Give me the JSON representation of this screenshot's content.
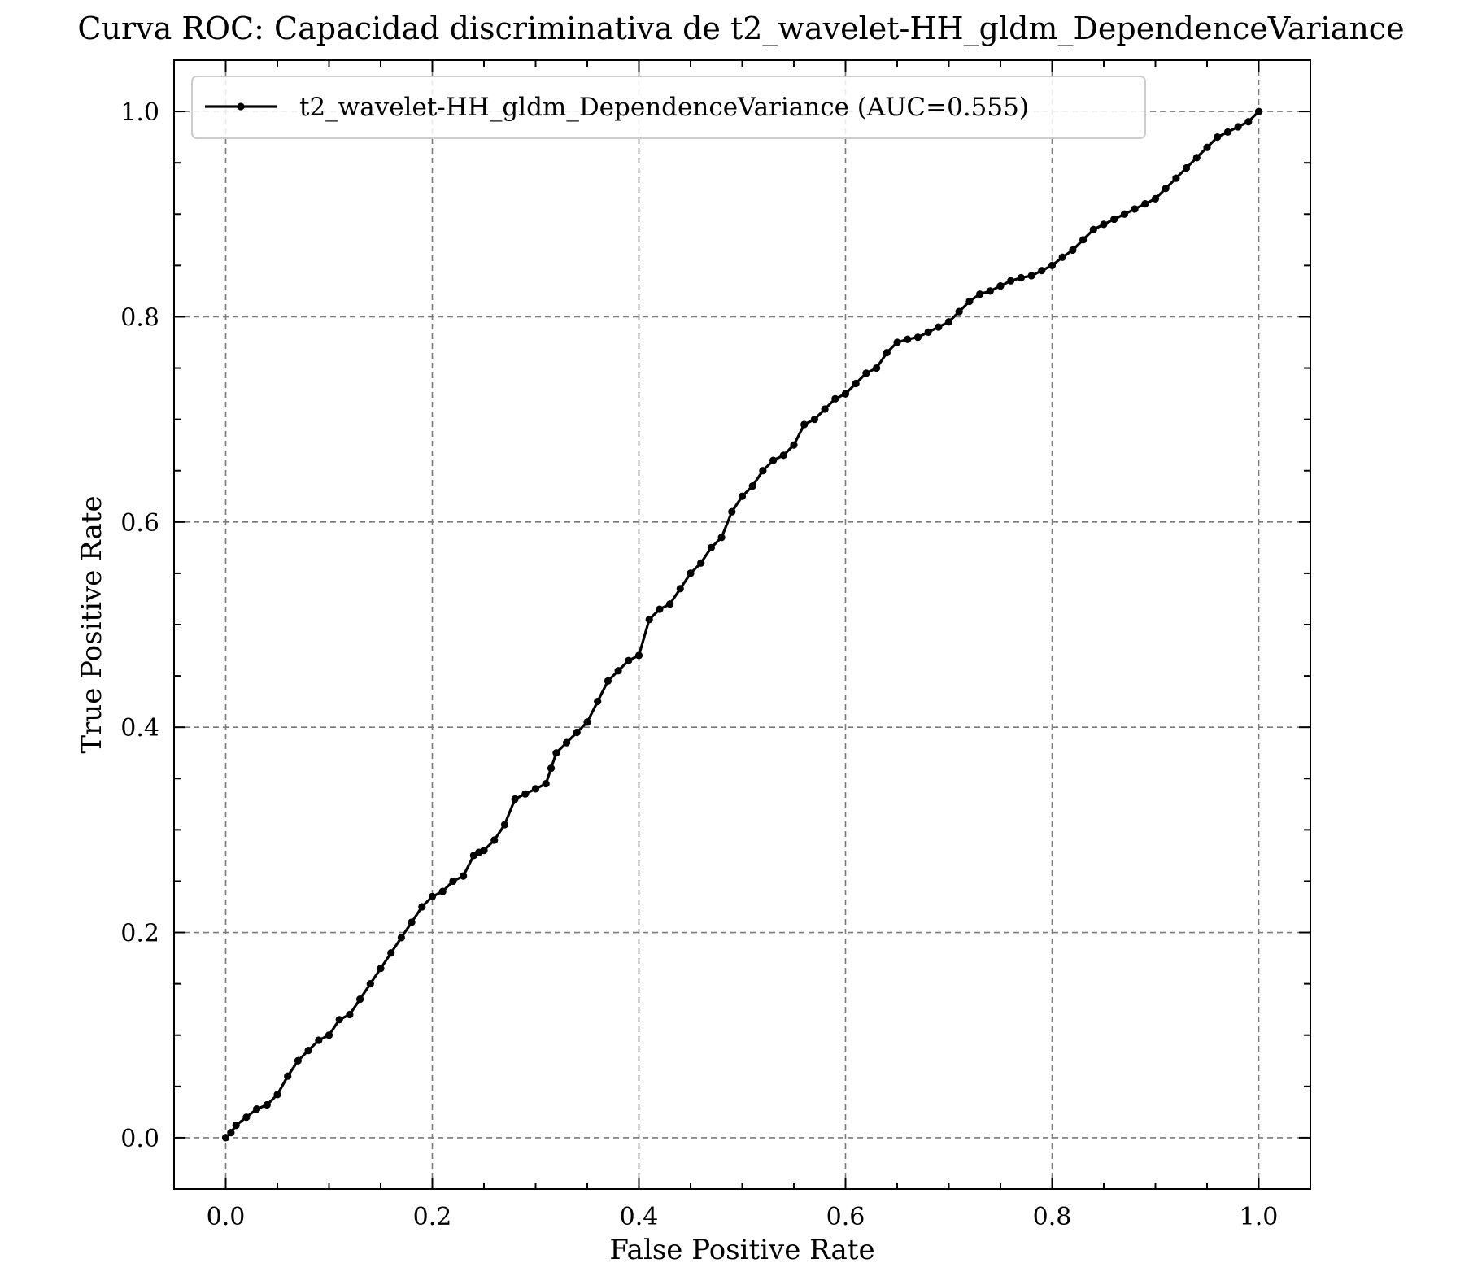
{
  "chart_data": {
    "type": "line",
    "title": "Curva ROC: Capacidad discriminativa de t2_wavelet-HH_gldm_DependenceVariance",
    "xlabel": "False Positive Rate",
    "ylabel": "True Positive Rate",
    "xlim": [
      -0.05,
      1.05
    ],
    "ylim": [
      -0.05,
      1.05
    ],
    "xticks": [
      "0.0",
      "0.2",
      "0.4",
      "0.6",
      "0.8",
      "1.0"
    ],
    "yticks": [
      "0.0",
      "0.2",
      "0.4",
      "0.6",
      "0.8",
      "1.0"
    ],
    "grid": true,
    "legend_position": "top-left",
    "series": [
      {
        "name": "t2_wavelet-HH_gldm_DependenceVariance (AUC=0.555)",
        "color": "#000000",
        "marker": "dot",
        "x": [
          0.0,
          0.005,
          0.01,
          0.02,
          0.03,
          0.04,
          0.05,
          0.06,
          0.07,
          0.08,
          0.09,
          0.1,
          0.11,
          0.12,
          0.13,
          0.14,
          0.15,
          0.16,
          0.17,
          0.18,
          0.19,
          0.2,
          0.21,
          0.22,
          0.23,
          0.24,
          0.245,
          0.25,
          0.26,
          0.27,
          0.28,
          0.29,
          0.3,
          0.31,
          0.315,
          0.32,
          0.33,
          0.34,
          0.35,
          0.36,
          0.37,
          0.38,
          0.39,
          0.4,
          0.41,
          0.42,
          0.43,
          0.44,
          0.45,
          0.46,
          0.47,
          0.48,
          0.49,
          0.5,
          0.51,
          0.52,
          0.53,
          0.54,
          0.55,
          0.56,
          0.57,
          0.58,
          0.59,
          0.6,
          0.61,
          0.62,
          0.63,
          0.64,
          0.65,
          0.66,
          0.67,
          0.68,
          0.69,
          0.7,
          0.71,
          0.72,
          0.73,
          0.74,
          0.75,
          0.76,
          0.77,
          0.78,
          0.79,
          0.8,
          0.81,
          0.82,
          0.83,
          0.84,
          0.85,
          0.86,
          0.87,
          0.88,
          0.89,
          0.9,
          0.91,
          0.92,
          0.93,
          0.94,
          0.95,
          0.96,
          0.97,
          0.98,
          0.99,
          1.0
        ],
        "y": [
          0.0,
          0.005,
          0.012,
          0.02,
          0.028,
          0.032,
          0.042,
          0.06,
          0.075,
          0.085,
          0.095,
          0.1,
          0.115,
          0.12,
          0.135,
          0.15,
          0.165,
          0.18,
          0.195,
          0.21,
          0.225,
          0.235,
          0.24,
          0.25,
          0.255,
          0.275,
          0.278,
          0.28,
          0.29,
          0.305,
          0.33,
          0.335,
          0.34,
          0.345,
          0.36,
          0.375,
          0.385,
          0.395,
          0.405,
          0.425,
          0.445,
          0.455,
          0.465,
          0.47,
          0.505,
          0.515,
          0.52,
          0.535,
          0.55,
          0.56,
          0.575,
          0.585,
          0.61,
          0.625,
          0.635,
          0.65,
          0.66,
          0.665,
          0.675,
          0.695,
          0.7,
          0.71,
          0.72,
          0.725,
          0.735,
          0.745,
          0.75,
          0.765,
          0.775,
          0.778,
          0.78,
          0.785,
          0.79,
          0.795,
          0.805,
          0.815,
          0.822,
          0.825,
          0.83,
          0.835,
          0.838,
          0.84,
          0.845,
          0.85,
          0.858,
          0.865,
          0.875,
          0.885,
          0.89,
          0.895,
          0.9,
          0.905,
          0.91,
          0.915,
          0.925,
          0.935,
          0.945,
          0.955,
          0.965,
          0.975,
          0.98,
          0.985,
          0.99,
          1.0
        ]
      }
    ]
  }
}
